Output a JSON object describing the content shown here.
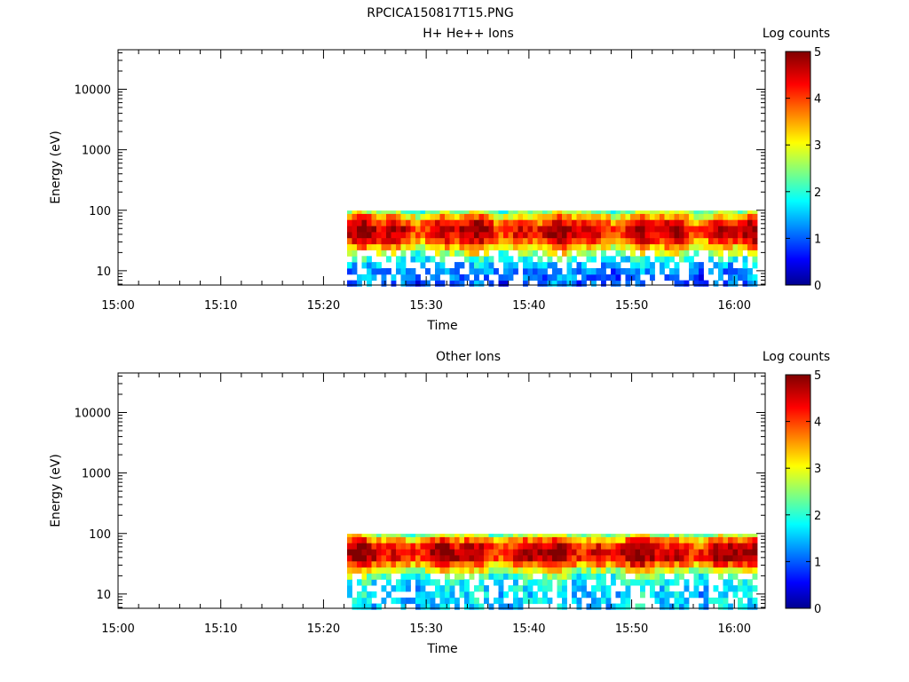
{
  "figure_title": "RPCICA150817T15.PNG",
  "chart_data": [
    {
      "type": "heatmap",
      "title": "H+ He++ Ions",
      "xlabel": "Time",
      "ylabel": "Energy (eV)",
      "x_ticks": [
        "15:00",
        "15:10",
        "15:20",
        "15:30",
        "15:40",
        "15:50",
        "16:00"
      ],
      "x_range_minutes": [
        0,
        63
      ],
      "data_start_minute": 22.3,
      "y_scale": "log",
      "y_range": [
        5.8,
        45000
      ],
      "y_ticks": [
        "10",
        "100",
        "1000",
        "10000"
      ],
      "energy_bands_ev": [
        6.2,
        7.8,
        9.8,
        12.4,
        15.6,
        19.6,
        24.7,
        31.1,
        39.2,
        49.4,
        62.2,
        78.4,
        98.7
      ],
      "band_peak_log_counts": [
        1.0,
        1.1,
        1.2,
        1.4,
        1.9,
        2.6,
        3.3,
        4.0,
        4.4,
        4.5,
        4.1,
        3.4,
        2.5
      ],
      "colorbar": {
        "label": "Log counts",
        "min": 0,
        "max": 5,
        "ticks": [
          "0",
          "1",
          "2",
          "3",
          "4",
          "5"
        ]
      }
    },
    {
      "type": "heatmap",
      "title": "Other Ions",
      "xlabel": "Time",
      "ylabel": "Energy (eV)",
      "x_ticks": [
        "15:00",
        "15:10",
        "15:20",
        "15:30",
        "15:40",
        "15:50",
        "16:00"
      ],
      "x_range_minutes": [
        0,
        63
      ],
      "data_start_minute": 22.3,
      "y_scale": "log",
      "y_range": [
        5.8,
        45000
      ],
      "y_ticks": [
        "10",
        "100",
        "1000",
        "10000"
      ],
      "energy_bands_ev": [
        6.2,
        7.8,
        9.8,
        12.4,
        15.6,
        19.6,
        24.7,
        31.1,
        39.2,
        49.4,
        62.2,
        78.4,
        98.7
      ],
      "band_peak_log_counts": [
        1.5,
        1.6,
        1.6,
        1.7,
        1.8,
        2.2,
        2.9,
        3.8,
        4.5,
        4.6,
        4.3,
        3.6,
        2.6
      ],
      "colorbar": {
        "label": "Log counts",
        "min": 0,
        "max": 5,
        "ticks": [
          "0",
          "1",
          "2",
          "3",
          "4",
          "5"
        ]
      }
    }
  ]
}
